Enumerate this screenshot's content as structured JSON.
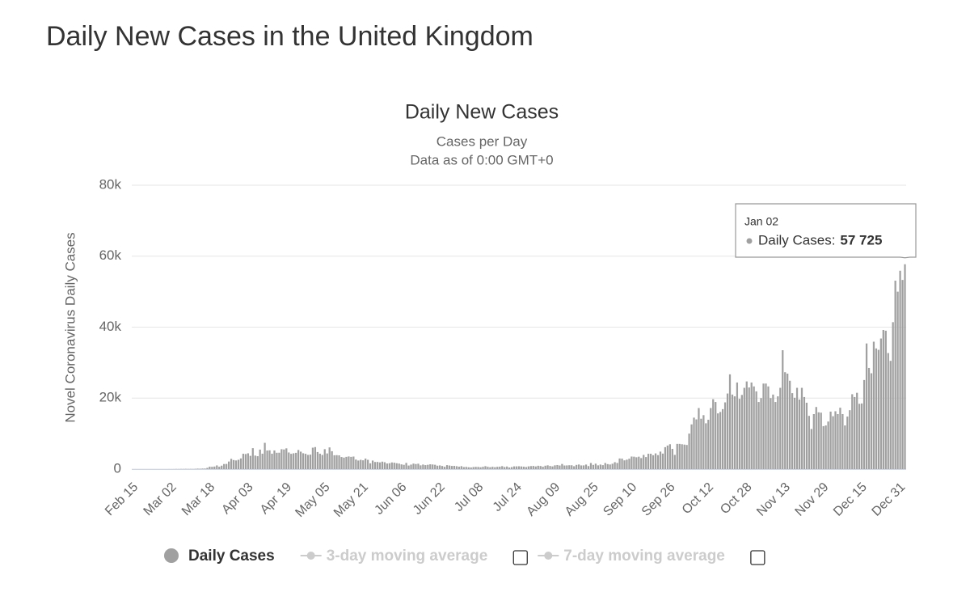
{
  "page_title": "Daily New Cases in the United Kingdom",
  "chart_data": {
    "type": "bar",
    "title": "Daily New Cases",
    "subtitle": "Cases per Day",
    "subtitle2": "Data as of 0:00 GMT+0",
    "ylabel": "Novel Coronavirus Daily Cases",
    "ylim": [
      0,
      80000
    ],
    "yticks": [
      0,
      {
        "value": 20000,
        "label": "20k"
      },
      {
        "value": 40000,
        "label": "40k"
      },
      {
        "value": 60000,
        "label": "60k"
      },
      {
        "value": 80000,
        "label": "80k"
      }
    ],
    "grid": true,
    "categories": [
      "Feb 15",
      null,
      null,
      null,
      null,
      null,
      null,
      null,
      null,
      null,
      null,
      null,
      null,
      null,
      null,
      null,
      "Mar 02",
      null,
      null,
      null,
      null,
      null,
      null,
      null,
      null,
      null,
      null,
      null,
      null,
      null,
      null,
      null,
      "Mar 18",
      null,
      null,
      null,
      null,
      null,
      null,
      null,
      null,
      null,
      null,
      null,
      null,
      null,
      null,
      null,
      "Apr 03",
      null,
      null,
      null,
      null,
      null,
      null,
      null,
      null,
      null,
      null,
      null,
      null,
      null,
      null,
      null,
      "Apr 19",
      null,
      null,
      null,
      null,
      null,
      null,
      null,
      null,
      null,
      null,
      null,
      null,
      null,
      null,
      null,
      "May 05",
      null,
      null,
      null,
      null,
      null,
      null,
      null,
      null,
      null,
      null,
      null,
      null,
      null,
      null,
      null,
      "May 21",
      null,
      null,
      null,
      null,
      null,
      null,
      null,
      null,
      null,
      null,
      null,
      null,
      null,
      null,
      null,
      "Jun 06",
      null,
      null,
      null,
      null,
      null,
      null,
      null,
      null,
      null,
      null,
      null,
      null,
      null,
      null,
      null,
      "Jun 22",
      null,
      null,
      null,
      null,
      null,
      null,
      null,
      null,
      null,
      null,
      null,
      null,
      null,
      null,
      null,
      "Jul 08",
      null,
      null,
      null,
      null,
      null,
      null,
      null,
      null,
      null,
      null,
      null,
      null,
      null,
      null,
      null,
      "Jul 24",
      null,
      null,
      null,
      null,
      null,
      null,
      null,
      null,
      null,
      null,
      null,
      null,
      null,
      null,
      null,
      "Aug 09",
      null,
      null,
      null,
      null,
      null,
      null,
      null,
      null,
      null,
      null,
      null,
      null,
      null,
      null,
      null,
      "Aug 25",
      null,
      null,
      null,
      null,
      null,
      null,
      null,
      null,
      null,
      null,
      null,
      null,
      null,
      null,
      null,
      "Sep 10",
      null,
      null,
      null,
      null,
      null,
      null,
      null,
      null,
      null,
      null,
      null,
      null,
      null,
      null,
      null,
      "Sep 26",
      null,
      null,
      null,
      null,
      null,
      null,
      null,
      null,
      null,
      null,
      null,
      null,
      null,
      null,
      null,
      "Oct 12",
      null,
      null,
      null,
      null,
      null,
      null,
      null,
      null,
      null,
      null,
      null,
      null,
      null,
      null,
      null,
      "Oct 28",
      null,
      null,
      null,
      null,
      null,
      null,
      null,
      null,
      null,
      null,
      null,
      null,
      null,
      null,
      null,
      "Nov 13",
      null,
      null,
      null,
      null,
      null,
      null,
      null,
      null,
      null,
      null,
      null,
      null,
      null,
      null,
      null,
      "Nov 29",
      null,
      null,
      null,
      null,
      null,
      null,
      null,
      null,
      null,
      null,
      null,
      null,
      null,
      null,
      null,
      "Dec 15",
      null,
      null,
      null,
      null,
      null,
      null,
      null,
      null,
      null,
      null,
      null,
      null,
      null,
      null,
      null,
      "Dec 31",
      null,
      "Jan 02"
    ],
    "series": [
      {
        "name": "Daily Cases",
        "color": "#a0a0a0",
        "values": [
          0,
          0,
          0,
          0,
          0,
          0,
          0,
          0,
          0,
          0,
          0,
          0,
          0,
          4,
          3,
          12,
          4,
          11,
          34,
          29,
          48,
          43,
          67,
          48,
          61,
          50,
          83,
          134,
          117,
          156,
          161,
          343,
          676,
          643,
          714,
          1035,
          665,
          967,
          1427,
          1452,
          2129,
          2885,
          2546,
          2433,
          2619,
          3009,
          4324,
          4244,
          4450,
          3735,
          5903,
          3802,
          3634,
          5491,
          4344,
          7400,
          5233,
          5288,
          4342,
          5252,
          4603,
          4617,
          5599,
          5525,
          5850,
          4676,
          4301,
          4451,
          4583,
          5386,
          4913,
          4463,
          4309,
          3996,
          4076,
          6032,
          6201,
          4806,
          4339,
          3985,
          5614,
          4406,
          6111,
          5032,
          3896,
          3923,
          3877,
          3403,
          3242,
          3446,
          3560,
          3450,
          3534,
          2684,
          2412,
          2615,
          2472,
          2959,
          2615,
          1625,
          2405,
          2004,
          2013,
          1887,
          2095,
          1936,
          1570,
          1653,
          1871,
          1805,
          1650,
          1557,
          1326,
          1205,
          1741,
          1003,
          1266,
          1541,
          1425,
          1514,
          1056,
          1279,
          1115,
          1218,
          1346,
          1295,
          1221,
          958,
          1035,
          874,
          653,
          1118,
          1006,
          890,
          901,
          815,
          689,
          829,
          576,
          624,
          516,
          470,
          581,
          630,
          612,
          512,
          650,
          820,
          650,
          530,
          650,
          538,
          642,
          687,
          827,
          580,
          726,
          445,
          560,
          769,
          767,
          798,
          745,
          685,
          581,
          763,
          846,
          880,
          744,
          938,
          871,
          670,
          950,
          1062,
          871,
          758,
          1062,
          1148,
          1009,
          1441,
          1012,
          1040,
          1089,
          1077,
          812,
          1182,
          1288,
          1033,
          1041,
          1276,
          853,
          1715,
          1184,
          1522,
          1048,
          1276,
          1108,
          1715,
          1406,
          1295,
          1508,
          1940,
          1735,
          2988,
          2948,
          2460,
          2659,
          2919,
          3539,
          3497,
          3330,
          3497,
          3105,
          3991,
          3395,
          4322,
          4322,
          3899,
          4422,
          3929,
          4926,
          4368,
          6178,
          6634,
          7000,
          5700,
          4000,
          7100,
          7100,
          7000,
          6900,
          6800,
          10000,
          12600,
          14500,
          14000,
          17200,
          14200,
          15200,
          12900,
          13900,
          17200,
          19700,
          18900,
          15700,
          16100,
          16900,
          18800,
          21300,
          26700,
          21000,
          20500,
          24400,
          19800,
          20900,
          22900,
          24700,
          23000,
          24400,
          23300,
          21900,
          18900,
          20000,
          24100,
          24100,
          23300,
          20000,
          21000,
          18900,
          20500,
          22900,
          33500,
          27300,
          26900,
          24900,
          21400,
          20100,
          22900,
          19600,
          22900,
          20300,
          18700,
          15000,
          11300,
          15500,
          17500,
          16000,
          15900,
          12100,
          12300,
          13400,
          16200,
          14900,
          16300,
          15500,
          17300,
          15500,
          12300,
          14800,
          16600,
          21100,
          20300,
          21500,
          18400,
          18500,
          25100,
          35400,
          28500,
          27000,
          35900,
          34000,
          33600,
          36800,
          39200,
          39000,
          32700,
          30500,
          41400,
          53100,
          50000,
          55900,
          53300,
          57725
        ]
      },
      {
        "name": "3-day moving average",
        "color": "#cccccc",
        "visible": false
      },
      {
        "name": "7-day moving average",
        "color": "#cccccc",
        "visible": false
      }
    ],
    "tooltip": {
      "title": "Jan 02",
      "label": "Daily Cases:",
      "value_label": "57 725"
    }
  }
}
